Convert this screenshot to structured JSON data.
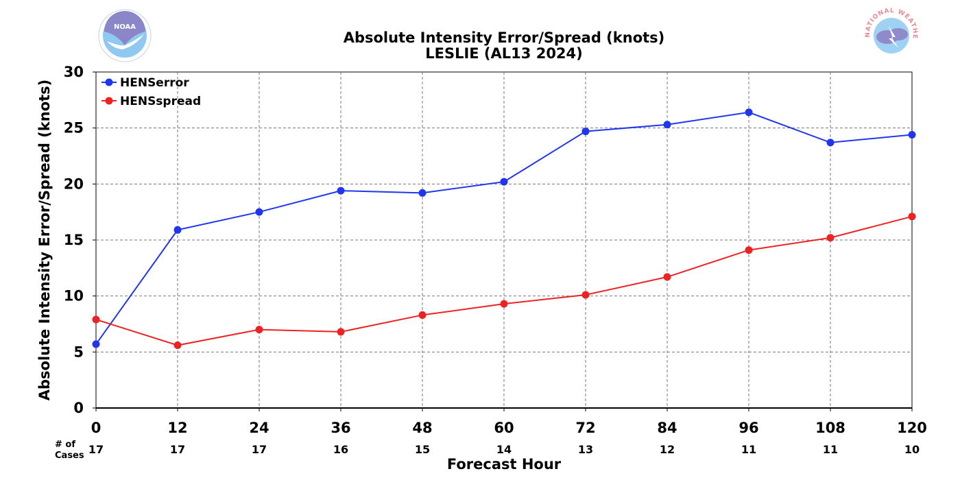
{
  "chart_data": {
    "type": "line",
    "title": "Absolute Intensity Error/Spread (knots)",
    "subtitle": "LESLIE (AL13 2024)",
    "xlabel": "Forecast Hour",
    "ylabel": "Absolute Intensity Error/Spread (knots)",
    "x": [
      0,
      12,
      24,
      36,
      48,
      60,
      72,
      84,
      96,
      108,
      120
    ],
    "xlim": [
      0,
      120
    ],
    "ylim": [
      0,
      30
    ],
    "yticks": [
      0,
      5,
      10,
      15,
      20,
      25,
      30
    ],
    "grid": true,
    "legend_position": "top-left",
    "series": [
      {
        "name": "HENSerror",
        "color": "#2035f0",
        "values": [
          5.7,
          15.9,
          17.5,
          19.4,
          19.2,
          20.2,
          24.7,
          25.3,
          26.4,
          23.7,
          24.4
        ]
      },
      {
        "name": "HENSspread",
        "color": "#ee2222",
        "values": [
          7.9,
          5.6,
          7.0,
          6.8,
          8.3,
          9.3,
          10.1,
          11.7,
          14.1,
          15.2,
          17.1
        ]
      }
    ],
    "cases_label_line1": "# of",
    "cases_label_line2": "Cases",
    "cases": [
      17,
      17,
      17,
      16,
      15,
      14,
      13,
      12,
      11,
      11,
      10
    ]
  },
  "logos": {
    "left": {
      "icon": "noaa-logo-icon",
      "text": "NOAA"
    },
    "right": {
      "icon": "nws-logo-icon",
      "text": "NATIONAL WEATHER SERVICE"
    }
  }
}
